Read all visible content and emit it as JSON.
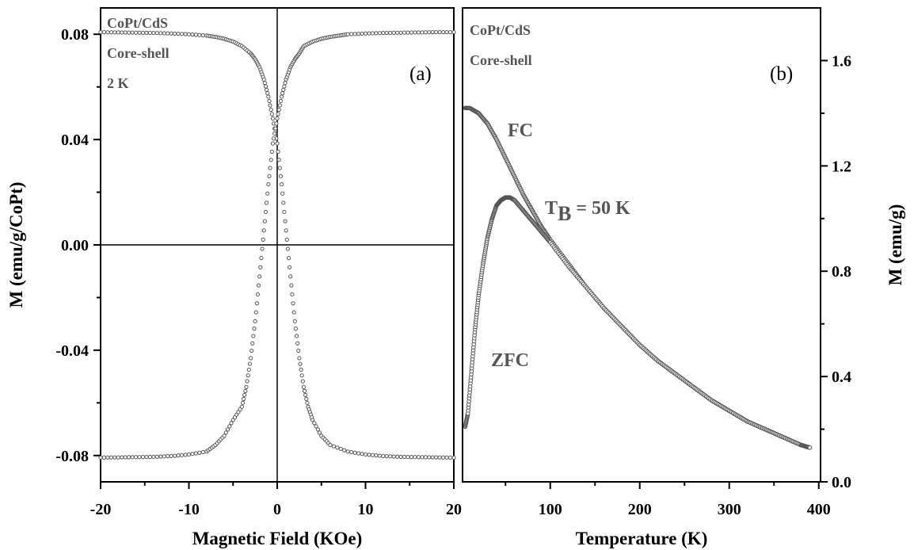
{
  "chart_data": [
    {
      "type": "scatter",
      "panel_label": "(a)",
      "annotations": [
        "CoPt/CdS",
        "Core-shell",
        "2 K"
      ],
      "xlabel": "Magnetic Field (KOe)",
      "ylabel": "M (emu/g/CoPt)",
      "xlim": [
        -20,
        20
      ],
      "ylim": [
        -0.09,
        0.09
      ],
      "xticks": [
        "-20",
        "-10",
        "0",
        "10",
        "20"
      ],
      "yticks": [
        "-0.08",
        "-0.04",
        "0.00",
        "0.04",
        "0.08"
      ],
      "reference_lines": {
        "x": 0,
        "y": 0
      },
      "marker": "open-circle",
      "color": "#555555",
      "series": [
        {
          "x": [
            -20,
            -18,
            -16,
            -14,
            -12,
            -10,
            -8,
            -7,
            -6,
            -5,
            -4,
            -3,
            -2.5,
            -2,
            -1.5,
            -1,
            -0.5,
            0,
            0.5,
            1,
            1.5,
            2,
            2.5,
            3,
            3.5,
            4,
            5,
            6,
            8,
            10,
            12,
            14,
            16,
            18,
            20
          ],
          "y": [
            0.0808,
            0.0807,
            0.0806,
            0.0805,
            0.0803,
            0.08,
            0.0795,
            0.079,
            0.0783,
            0.0772,
            0.0755,
            0.0727,
            0.0705,
            0.0675,
            0.0628,
            0.0563,
            0.048,
            0.0385,
            0.023,
            0.0055,
            -0.012,
            -0.029,
            -0.043,
            -0.054,
            -0.0615,
            -0.0665,
            -0.0725,
            -0.076,
            -0.0785,
            -0.0796,
            -0.0802,
            -0.0805,
            -0.0806,
            -0.0807,
            -0.0808
          ]
        },
        {
          "x": [
            -20,
            -18,
            -16,
            -14,
            -12,
            -10,
            -8,
            -7,
            -6,
            -5,
            -4,
            -3.5,
            -3,
            -2.5,
            -2,
            -1.5,
            -1,
            -0.5,
            0,
            0.5,
            1,
            1.5,
            2,
            2.5,
            3,
            4,
            5,
            6,
            7,
            8,
            10,
            12,
            14,
            16,
            18,
            20
          ],
          "y": [
            -0.0808,
            -0.0807,
            -0.0806,
            -0.0805,
            -0.0802,
            -0.0796,
            -0.0785,
            -0.076,
            -0.0725,
            -0.0665,
            -0.0615,
            -0.054,
            -0.043,
            -0.029,
            -0.012,
            0.0055,
            0.023,
            0.0385,
            0.048,
            0.0563,
            0.0628,
            0.0675,
            0.0705,
            0.0727,
            0.0755,
            0.0772,
            0.0783,
            0.079,
            0.0795,
            0.08,
            0.0803,
            0.0805,
            0.0806,
            0.0807,
            0.0808,
            0.0808
          ]
        }
      ]
    },
    {
      "type": "scatter",
      "panel_label": "(b)",
      "annotations": [
        "CoPt/CdS",
        "Core-shell"
      ],
      "xlabel": "Temperature (K)",
      "ylabel": "M (emu/g)",
      "xlim": [
        2,
        402
      ],
      "ylim": [
        0.0,
        1.8
      ],
      "xticks": [
        "100",
        "200",
        "300",
        "400"
      ],
      "yticks": [
        "0.0",
        "0.4",
        "0.8",
        "1.2",
        "1.6"
      ],
      "marker": "open-circle",
      "color": "#555555",
      "blocking_label": {
        "base": "T",
        "subscript": "B",
        "rest": " = 50 K"
      },
      "series": [
        {
          "name": "FC",
          "x": [
            5,
            10,
            20,
            30,
            40,
            50,
            60,
            70,
            80,
            90,
            100,
            120,
            140,
            160,
            180,
            200,
            220,
            240,
            260,
            280,
            300,
            320,
            340,
            360,
            380,
            390
          ],
          "y": [
            1.42,
            1.42,
            1.4,
            1.36,
            1.3,
            1.23,
            1.16,
            1.09,
            1.03,
            0.97,
            0.92,
            0.83,
            0.74,
            0.66,
            0.59,
            0.52,
            0.46,
            0.41,
            0.36,
            0.31,
            0.27,
            0.23,
            0.2,
            0.17,
            0.14,
            0.13
          ]
        },
        {
          "name": "ZFC",
          "x": [
            5,
            8,
            12,
            16,
            20,
            25,
            30,
            35,
            40,
            45,
            50,
            55,
            60,
            70,
            80,
            90,
            100,
            120,
            140,
            160,
            180,
            200,
            220,
            240,
            260,
            280,
            300,
            320,
            340,
            360,
            380,
            390
          ],
          "y": [
            0.21,
            0.26,
            0.42,
            0.58,
            0.71,
            0.83,
            0.93,
            1.0,
            1.05,
            1.07,
            1.08,
            1.08,
            1.07,
            1.03,
            0.99,
            0.95,
            0.91,
            0.82,
            0.74,
            0.66,
            0.59,
            0.52,
            0.46,
            0.41,
            0.36,
            0.31,
            0.27,
            0.23,
            0.2,
            0.17,
            0.14,
            0.13
          ]
        }
      ]
    }
  ]
}
